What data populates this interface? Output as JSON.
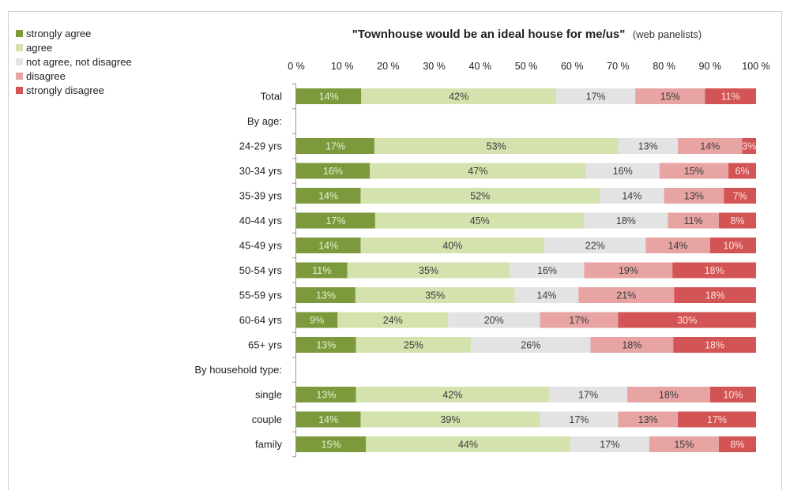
{
  "chart_data": {
    "type": "bar",
    "orientation": "horizontal",
    "stacked": true,
    "title": {
      "main": "\"Townhouse would be an ideal house for me/us\"",
      "sub": "(web panelists)"
    },
    "x_ticks": [
      "0 %",
      "10 %",
      "20 %",
      "30 %",
      "40 %",
      "50 %",
      "60 %",
      "70 %",
      "80 %",
      "90 %",
      "100 %"
    ],
    "xlim": [
      0,
      100
    ],
    "legend_position": "top-left",
    "series": [
      {
        "name": "strongly agree",
        "color": "#7c9a3c",
        "label_color": "#e6efd3"
      },
      {
        "name": "agree",
        "color": "#d4e2ae",
        "label_color": "#3b3b3b"
      },
      {
        "name": "not agree, not disagree",
        "color": "#e3e3e3",
        "label_color": "#3b3b3b"
      },
      {
        "name": "disagree",
        "color": "#e8a3a3",
        "label_color": "#3b3b3b"
      },
      {
        "name": "strongly disagree",
        "color": "#d35454",
        "label_color": "#fbe3e3"
      }
    ],
    "rows": [
      {
        "label": "Total",
        "values": [
          14,
          42,
          17,
          15,
          11
        ],
        "labels": [
          "14%",
          "42%",
          "17%",
          "15%",
          "11%"
        ]
      },
      {
        "label": "By age:",
        "group_header": true
      },
      {
        "label": "24-29 yrs",
        "values": [
          17,
          53,
          13,
          14,
          3
        ],
        "labels": [
          "17%",
          "53%",
          "13%",
          "14%",
          "3%"
        ]
      },
      {
        "label": "30-34 yrs",
        "values": [
          16,
          47,
          16,
          15,
          6
        ],
        "labels": [
          "16%",
          "47%",
          "16%",
          "15%",
          "6%"
        ]
      },
      {
        "label": "35-39 yrs",
        "values": [
          14,
          52,
          14,
          13,
          7
        ],
        "labels": [
          "14%",
          "52%",
          "14%",
          "13%",
          "7%"
        ]
      },
      {
        "label": "40-44 yrs",
        "values": [
          17,
          45,
          18,
          11,
          8
        ],
        "labels": [
          "17%",
          "45%",
          "18%",
          "11%",
          "8%"
        ]
      },
      {
        "label": "45-49 yrs",
        "values": [
          14,
          40,
          22,
          14,
          10
        ],
        "labels": [
          "14%",
          "40%",
          "22%",
          "14%",
          "10%"
        ]
      },
      {
        "label": "50-54 yrs",
        "values": [
          11,
          35,
          16,
          19,
          18
        ],
        "labels": [
          "11%",
          "35%",
          "16%",
          "19%",
          "18%"
        ]
      },
      {
        "label": "55-59 yrs",
        "values": [
          13,
          35,
          14,
          21,
          18
        ],
        "labels": [
          "13%",
          "35%",
          "14%",
          "21%",
          "18%"
        ]
      },
      {
        "label": "60-64 yrs",
        "values": [
          9,
          24,
          20,
          17,
          30
        ],
        "labels": [
          "9%",
          "24%",
          "20%",
          "17%",
          "30%"
        ]
      },
      {
        "label": "65+ yrs",
        "values": [
          13,
          25,
          26,
          18,
          18
        ],
        "labels": [
          "13%",
          "25%",
          "26%",
          "18%",
          "18%"
        ]
      },
      {
        "label": "By household type:",
        "group_header": true
      },
      {
        "label": "single",
        "values": [
          13,
          42,
          17,
          18,
          10
        ],
        "labels": [
          "13%",
          "42%",
          "17%",
          "18%",
          "10%"
        ]
      },
      {
        "label": "couple",
        "values": [
          14,
          39,
          17,
          13,
          17
        ],
        "labels": [
          "14%",
          "39%",
          "17%",
          "13%",
          "17%"
        ]
      },
      {
        "label": "family",
        "values": [
          15,
          44,
          17,
          15,
          8
        ],
        "labels": [
          "15%",
          "44%",
          "17%",
          "15%",
          "8%"
        ]
      }
    ]
  }
}
